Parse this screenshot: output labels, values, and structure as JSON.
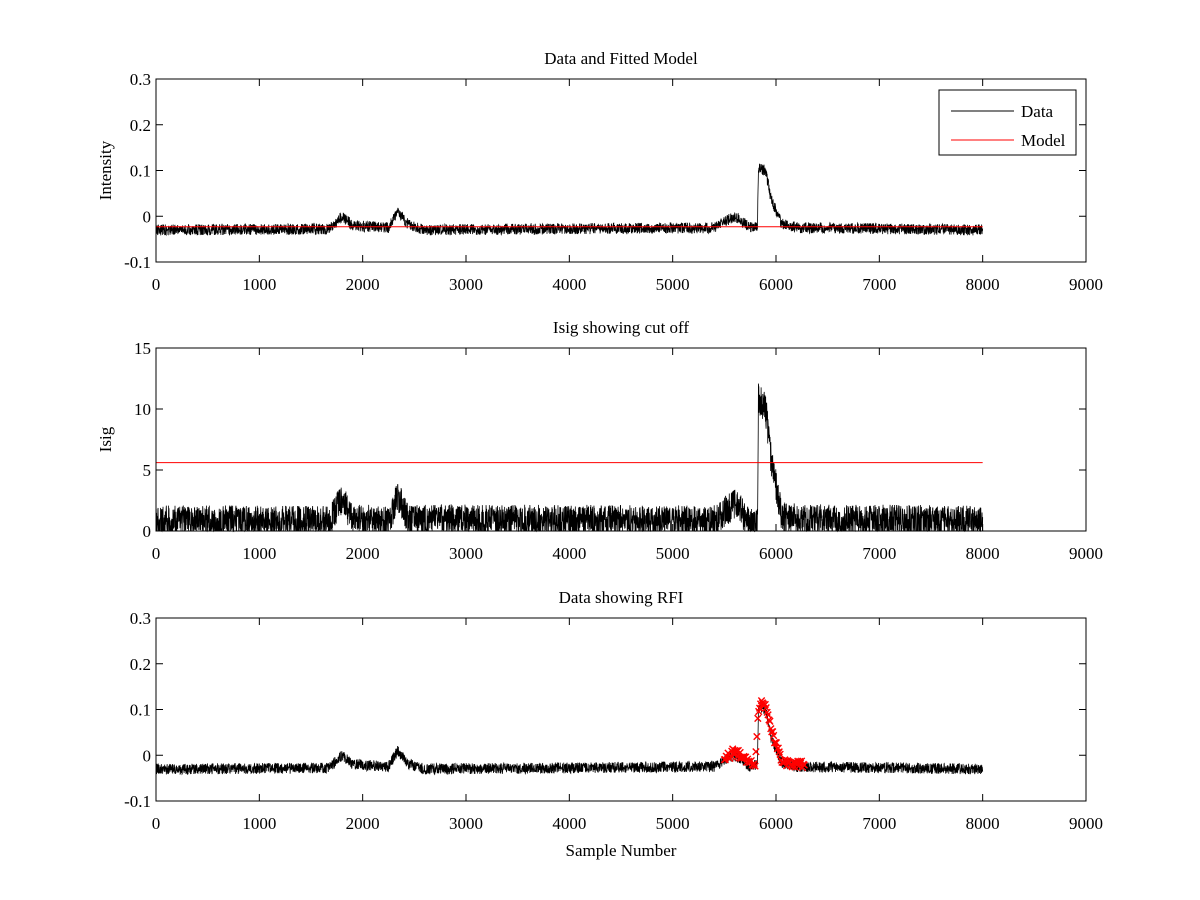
{
  "figure": {
    "colors": {
      "data": "#000000",
      "model": "#ff0000",
      "axes": "#000000",
      "background": "#ffffff"
    }
  },
  "chart_data": [
    {
      "type": "line",
      "title": "Data and Fitted Model",
      "xlabel": "",
      "ylabel": "Intensity",
      "xlim": [
        0,
        9000
      ],
      "ylim": [
        -0.1,
        0.3
      ],
      "xticks": [
        "0",
        "1000",
        "2000",
        "3000",
        "4000",
        "5000",
        "6000",
        "7000",
        "8000",
        "9000"
      ],
      "yticks": [
        "-0.1",
        "0",
        "0.1",
        "0.2",
        "0.3"
      ],
      "grid": false,
      "legend": {
        "position": "top-right",
        "entries": [
          "Data",
          "Model"
        ]
      },
      "series": [
        {
          "name": "Data",
          "color": "#000000",
          "x_range": [
            0,
            8000
          ],
          "noise_amplitude": 0.012,
          "profile_points": [
            [
              0,
              -0.03
            ],
            [
              1680,
              -0.028
            ],
            [
              1800,
              0.0
            ],
            [
              1900,
              -0.02
            ],
            [
              2250,
              -0.025
            ],
            [
              2340,
              0.01
            ],
            [
              2450,
              -0.02
            ],
            [
              2600,
              -0.03
            ],
            [
              5400,
              -0.025
            ],
            [
              5600,
              0.0
            ],
            [
              5750,
              -0.025
            ],
            [
              5820,
              -0.02
            ],
            [
              5830,
              0.105
            ],
            [
              5900,
              0.1
            ],
            [
              5950,
              0.04
            ],
            [
              6050,
              -0.015
            ],
            [
              6200,
              -0.025
            ],
            [
              8000,
              -0.03
            ]
          ]
        },
        {
          "name": "Model",
          "color": "#ff0000",
          "x": [
            0,
            8000
          ],
          "y": [
            -0.023,
            -0.023
          ]
        }
      ]
    },
    {
      "type": "line",
      "title": "Isig showing cut off",
      "xlabel": "",
      "ylabel": "Isig",
      "xlim": [
        0,
        9000
      ],
      "ylim": [
        0,
        15
      ],
      "xticks": [
        "0",
        "1000",
        "2000",
        "3000",
        "4000",
        "5000",
        "6000",
        "7000",
        "8000",
        "9000"
      ],
      "yticks": [
        "0",
        "5",
        "10",
        "15"
      ],
      "grid": false,
      "series": [
        {
          "color": "#000000",
          "x_range": [
            0,
            8000
          ],
          "noise_amplitude": 1.3,
          "profile_points": [
            [
              0,
              0.8
            ],
            [
              1680,
              0.8
            ],
            [
              1800,
              2.6
            ],
            [
              1900,
              0.9
            ],
            [
              2250,
              0.8
            ],
            [
              2340,
              2.8
            ],
            [
              2450,
              0.9
            ],
            [
              5400,
              0.8
            ],
            [
              5600,
              2.3
            ],
            [
              5750,
              0.6
            ],
            [
              5820,
              0.5
            ],
            [
              5830,
              10.8
            ],
            [
              5900,
              10.0
            ],
            [
              5950,
              6.0
            ],
            [
              6050,
              1.4
            ],
            [
              6200,
              0.9
            ],
            [
              8000,
              0.8
            ]
          ],
          "floor": 0
        },
        {
          "name": "Cut off",
          "color": "#ff0000",
          "x": [
            0,
            8000
          ],
          "y": [
            5.6,
            5.6
          ]
        }
      ]
    },
    {
      "type": "line",
      "title": "Data showing RFI",
      "xlabel": "Sample Number",
      "ylabel": "",
      "xlim": [
        0,
        9000
      ],
      "ylim": [
        -0.1,
        0.3
      ],
      "xticks": [
        "0",
        "1000",
        "2000",
        "3000",
        "4000",
        "5000",
        "6000",
        "7000",
        "8000",
        "9000"
      ],
      "yticks": [
        "-0.1",
        "0",
        "0.1",
        "0.2",
        "0.3"
      ],
      "grid": false,
      "series": [
        {
          "color": "#000000",
          "x_range": [
            0,
            8000
          ],
          "noise_amplitude": 0.012,
          "profile_points": [
            [
              0,
              -0.03
            ],
            [
              1680,
              -0.028
            ],
            [
              1800,
              0.0
            ],
            [
              1900,
              -0.02
            ],
            [
              2250,
              -0.025
            ],
            [
              2340,
              0.01
            ],
            [
              2450,
              -0.02
            ],
            [
              2600,
              -0.03
            ],
            [
              5400,
              -0.025
            ],
            [
              5600,
              0.0
            ],
            [
              5750,
              -0.025
            ],
            [
              5820,
              -0.02
            ],
            [
              5830,
              0.105
            ],
            [
              5900,
              0.1
            ],
            [
              5950,
              0.04
            ],
            [
              6050,
              -0.015
            ],
            [
              6200,
              -0.025
            ],
            [
              8000,
              -0.03
            ]
          ]
        },
        {
          "name": "RFI",
          "color": "#ff0000",
          "marker": "x",
          "x_range": [
            5500,
            6280
          ],
          "noise_amplitude": 0.008,
          "profile_points": [
            [
              5500,
              -0.01
            ],
            [
              5600,
              0.01
            ],
            [
              5700,
              -0.01
            ],
            [
              5800,
              -0.02
            ],
            [
              5830,
              0.1
            ],
            [
              5880,
              0.12
            ],
            [
              5950,
              0.06
            ],
            [
              6050,
              -0.01
            ],
            [
              6150,
              -0.02
            ],
            [
              6280,
              -0.02
            ]
          ]
        }
      ]
    }
  ]
}
